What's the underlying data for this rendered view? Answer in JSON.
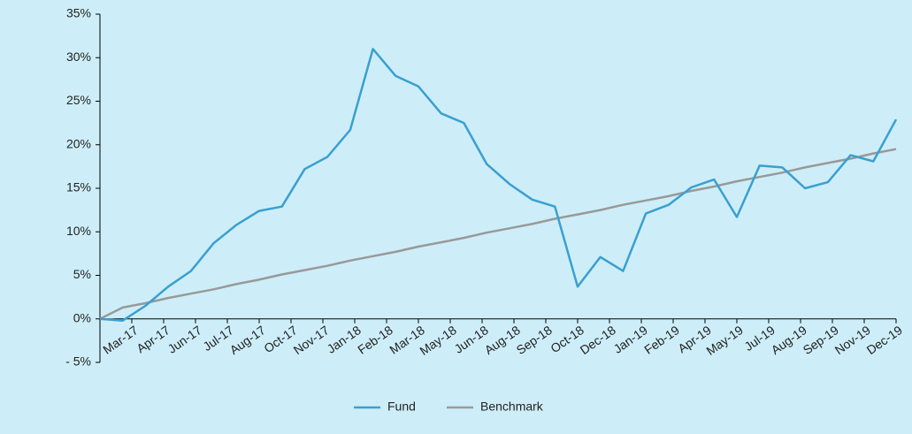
{
  "chart_data": {
    "type": "line",
    "x_labels": [
      "Mar-17",
      "Apr-17",
      "Jun-17",
      "Jul-17",
      "Aug-17",
      "Oct-17",
      "Nov-17",
      "Jan-18",
      "Feb-18",
      "Mar-18",
      "May-18",
      "Jun-18",
      "Aug-18",
      "Sep-18",
      "Oct-18",
      "Dec-18",
      "Jan-19",
      "Feb-19",
      "Apr-19",
      "May-19",
      "Jul-19",
      "Aug-19",
      "Sep-19",
      "Nov-19",
      "Dec-19"
    ],
    "series": [
      {
        "name": "Fund",
        "color": "#3a9fd0",
        "values": [
          0,
          -0.2,
          1.5,
          3.7,
          5.5,
          8.7,
          10.8,
          12.4,
          12.9,
          17.2,
          18.6,
          21.7,
          31.0,
          27.9,
          26.7,
          23.6,
          22.5,
          17.8,
          15.5,
          13.7,
          12.9,
          3.7,
          7.1,
          5.5,
          12.1,
          13.1,
          15.1,
          16.0,
          11.7,
          17.6,
          17.4,
          15.0,
          15.7,
          18.8,
          18.1,
          22.9
        ]
      },
      {
        "name": "Benchmark",
        "color": "#999999",
        "values": [
          0,
          1.3,
          1.8,
          2.4,
          2.9,
          3.4,
          4.0,
          4.5,
          5.1,
          5.6,
          6.1,
          6.7,
          7.2,
          7.7,
          8.3,
          8.8,
          9.3,
          9.9,
          10.4,
          10.9,
          11.5,
          12.0,
          12.5,
          13.1,
          13.6,
          14.1,
          14.7,
          15.2,
          15.8,
          16.3,
          16.8,
          17.4,
          17.9,
          18.4,
          19.0,
          19.5
        ]
      }
    ],
    "ylim": [
      -5,
      35
    ],
    "yticks": [
      {
        "value": -5,
        "label": "- 5%"
      },
      {
        "value": 0,
        "label": "0%"
      },
      {
        "value": 5,
        "label": "5%"
      },
      {
        "value": 10,
        "label": "10%"
      },
      {
        "value": 15,
        "label": "15%"
      },
      {
        "value": 20,
        "label": "20%"
      },
      {
        "value": 25,
        "label": "25%"
      },
      {
        "value": 30,
        "label": "30%"
      },
      {
        "value": 35,
        "label": "35%"
      }
    ],
    "legend": "bottom"
  }
}
